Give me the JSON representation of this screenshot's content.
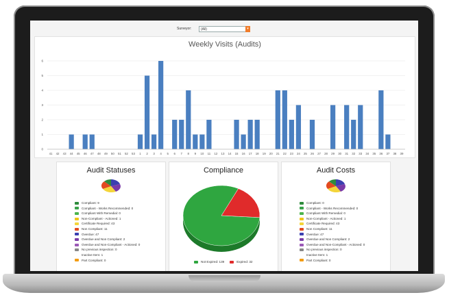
{
  "filter": {
    "label": "Surveyor:",
    "value": "(All)"
  },
  "bar_panel": {
    "title": "Weekly Visits (Audits)"
  },
  "chart_data": [
    {
      "type": "bar",
      "title": "Weekly Visits (Audits)",
      "categories": [
        "41",
        "42",
        "43",
        "44",
        "45",
        "46",
        "47",
        "48",
        "49",
        "50",
        "51",
        "52",
        "53",
        "1",
        "2",
        "3",
        "4",
        "5",
        "6",
        "7",
        "8",
        "9",
        "10",
        "11",
        "12",
        "13",
        "14",
        "15",
        "16",
        "17",
        "18",
        "19",
        "20",
        "21",
        "22",
        "23",
        "24",
        "25",
        "26",
        "27",
        "28",
        "29",
        "30",
        "31",
        "32",
        "33",
        "34",
        "35",
        "36",
        "37",
        "38",
        "39"
      ],
      "values": [
        0,
        0,
        0,
        1,
        0,
        1,
        1,
        0,
        0,
        0,
        0,
        0,
        0,
        1,
        5,
        1,
        6,
        0,
        2,
        2,
        4,
        1,
        1,
        2,
        0,
        0,
        0,
        2,
        1,
        2,
        2,
        0,
        0,
        4,
        4,
        2,
        3,
        0,
        2,
        0,
        0,
        3,
        0,
        3,
        2,
        3,
        0,
        0,
        4,
        1,
        0,
        0
      ],
      "ylim": [
        0,
        6
      ],
      "yticks": [
        "0",
        "1",
        "2",
        "3",
        "4",
        "5",
        "6"
      ],
      "bar_color": "#4a7fc0",
      "grid": true
    },
    {
      "type": "pie",
      "title": "Compliance",
      "slices": [
        {
          "label": "Not Expired",
          "value": 139,
          "color": "#2fa640"
        },
        {
          "label": "Expired",
          "value": 32,
          "color": "#e02b2b"
        }
      ]
    }
  ],
  "statuses_panel": {
    "title": "Audit Statuses",
    "legend": [
      {
        "label": "Compliant: 9",
        "color": "#2e8b3c"
      },
      {
        "label": "Compliant - Works Recommended: 0",
        "color": "#3aa24a"
      },
      {
        "label": "Compliant With Remedial: 0",
        "color": "#4cb44c"
      },
      {
        "label": "Non-Compliant - Actioned: 1",
        "color": "#f0c419"
      },
      {
        "label": "Certificate Required: 43",
        "color": "#f4d53a"
      },
      {
        "label": "Non Compliant: 11",
        "color": "#e34a1f"
      },
      {
        "label": "Overdue: 47",
        "color": "#3b3fb0"
      },
      {
        "label": "Overdue and Non Compliant: 2",
        "color": "#7a3aa8"
      },
      {
        "label": "Overdue and Non-Compliant - Actioned: 0",
        "color": "#9b59b6"
      },
      {
        "label": "No previous inspection: 0",
        "color": "#888888"
      },
      {
        "label": "Inactive Item: 1",
        "color": ""
      },
      {
        "label": "Part Compliant: 0",
        "color": "#f39c12"
      }
    ]
  },
  "compliance_panel": {
    "title": "Compliance",
    "legend_not_expired": "Not Expired: 139",
    "legend_expired": "Expired: 32"
  },
  "costs_panel": {
    "title": "Audit Costs",
    "legend": [
      {
        "label": "Compliant: 0",
        "color": "#2e8b3c"
      },
      {
        "label": "Compliant - Works Recommended: 0",
        "color": "#3aa24a"
      },
      {
        "label": "Compliant With Remedial: 0",
        "color": "#4cb44c"
      },
      {
        "label": "Non-Compliant - Actioned: 1",
        "color": "#f0c419"
      },
      {
        "label": "Certificate Required: 43",
        "color": "#f4d53a"
      },
      {
        "label": "Non Compliant: 11",
        "color": "#e34a1f"
      },
      {
        "label": "Overdue: 47",
        "color": "#3b3fb0"
      },
      {
        "label": "Overdue and Non Compliant: 2",
        "color": "#7a3aa8"
      },
      {
        "label": "Overdue and Non-Compliant - Actioned: 0",
        "color": "#9b59b6"
      },
      {
        "label": "No previous inspection: 0",
        "color": "#888888"
      },
      {
        "label": "Inactive Item: 1",
        "color": ""
      },
      {
        "label": "Part Compliant: 0",
        "color": "#f39c12"
      }
    ]
  }
}
